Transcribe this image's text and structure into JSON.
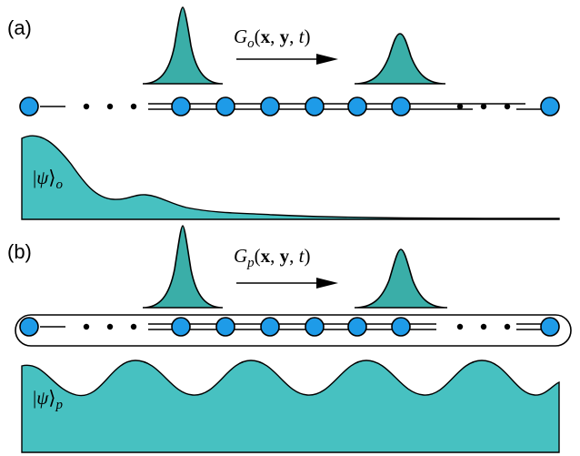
{
  "panels": [
    {
      "id": "a",
      "label": "(a)",
      "operator": {
        "symbol": "G",
        "subscript": "o",
        "args": [
          "x",
          "y",
          "t"
        ]
      },
      "wavefunction": {
        "symbol": "ψ",
        "subscript": "o"
      },
      "boundary": "open"
    },
    {
      "id": "b",
      "label": "(b)",
      "operator": {
        "symbol": "G",
        "subscript": "p",
        "args": [
          "x",
          "y",
          "t"
        ]
      },
      "wavefunction": {
        "symbol": "ψ",
        "subscript": "p"
      },
      "boundary": "periodic"
    }
  ],
  "colors": {
    "site_fill": "#1e9be8",
    "wave_fill": "#47c1c1",
    "bump_fill": "#3aaea8",
    "outline": "#000000"
  }
}
